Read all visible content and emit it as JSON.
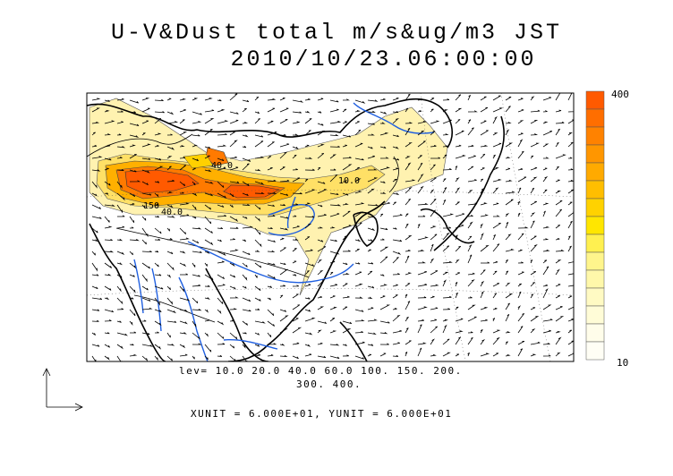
{
  "title": {
    "line1": "U-V&Dust total m/s&ug/m3 JST",
    "line2": "2010/10/23.06:00:00"
  },
  "colorbar": {
    "max_label": "400",
    "min_label": "10",
    "colors": [
      "#ff5a00",
      "#ff6e00",
      "#ff8200",
      "#ff9600",
      "#ffaa00",
      "#ffbe00",
      "#ffd200",
      "#ffe600",
      "#fff050",
      "#fff58c",
      "#fff8aa",
      "#fffac3",
      "#fffcd7",
      "#fffdea",
      "#fffef5"
    ]
  },
  "contour_labels": [
    {
      "text": "40.0"
    },
    {
      "text": "10.0"
    },
    {
      "text": "150"
    },
    {
      "text": "40.0"
    }
  ],
  "legend": {
    "levels_line1": "lev= 10.0 20.0 40.0 60.0 100. 150. 200.",
    "levels_line2": "300. 400.",
    "units": "XUNIT = 6.000E+01, YUNIT = 6.000E+01"
  },
  "colors": {
    "coast": "#000000",
    "river": "#1f5fe0",
    "dust_low": "#fff2b0",
    "dust_mid": "#ffc800",
    "dust_high": "#ff5a00"
  }
}
